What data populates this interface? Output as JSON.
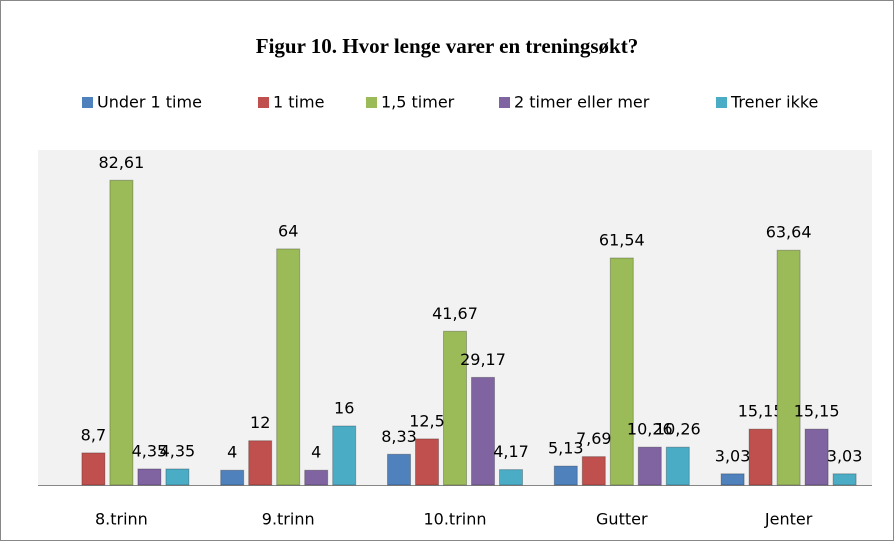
{
  "chart_data": {
    "type": "bar",
    "title": "Figur 10. Hvor lenge varer en treningsøkt?",
    "categories": [
      "8.trinn",
      "9.trinn",
      "10.trinn",
      "Gutter",
      "Jenter"
    ],
    "series": [
      {
        "name": "Under 1 time",
        "color": "#4f81bd",
        "values": [
          null,
          4,
          8.33,
          5.13,
          3.03
        ],
        "value_labels": [
          null,
          "4",
          "8,33",
          "5,13",
          "3,03"
        ]
      },
      {
        "name": "1 time",
        "color": "#c0504d",
        "values": [
          8.7,
          12,
          12.5,
          7.69,
          15.15
        ],
        "value_labels": [
          "8,7",
          "12",
          "12,5",
          "7,69",
          "15,15"
        ]
      },
      {
        "name": "1,5 timer",
        "color": "#9bbb59",
        "values": [
          82.61,
          64,
          41.67,
          61.54,
          63.64
        ],
        "value_labels": [
          "82,61",
          "64",
          "41,67",
          "61,54",
          "63,64"
        ]
      },
      {
        "name": "2 timer eller mer",
        "color": "#8064a2",
        "values": [
          4.35,
          4,
          29.17,
          10.26,
          15.15
        ],
        "value_labels": [
          "4,35",
          "4",
          "29,17",
          "10,26",
          "15,15"
        ]
      },
      {
        "name": "Trener ikke",
        "color": "#4bacc6",
        "values": [
          4.35,
          16,
          4.17,
          10.26,
          3.03
        ],
        "value_labels": [
          "4,35",
          "16",
          "4,17",
          "10,26",
          "3,03"
        ]
      }
    ],
    "ylim": [
      0,
      90
    ]
  }
}
